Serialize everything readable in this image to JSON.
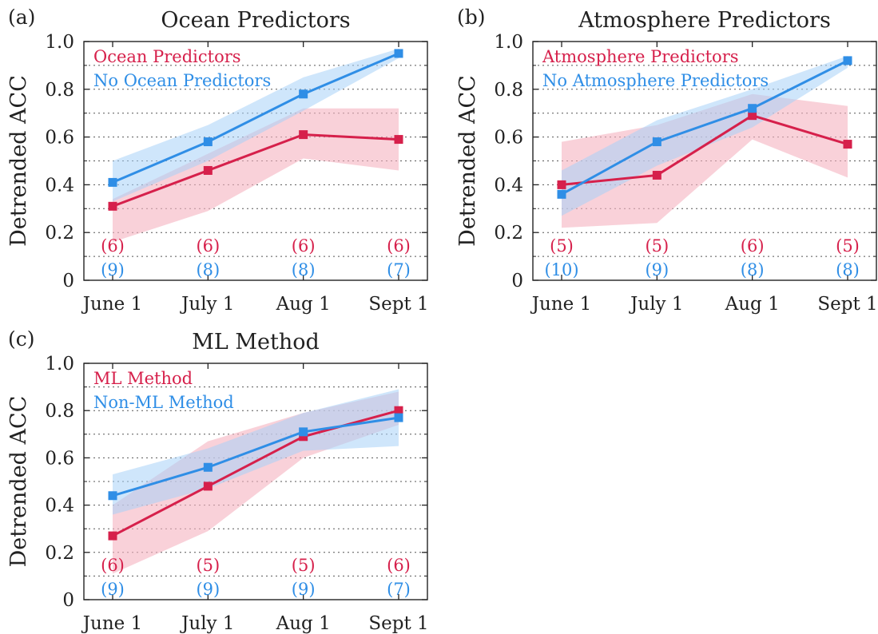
{
  "colors": {
    "red": "#d6204b",
    "blue": "#2f8ee6",
    "red_fill": "#f5b3bf",
    "blue_fill": "#a8d1f7"
  },
  "chart_data": [
    {
      "type": "line",
      "panel_label": "(a)",
      "title": "Ocean Predictors",
      "xlabel": "",
      "ylabel": "Detrended ACC",
      "categories": [
        "June 1",
        "July 1",
        "Aug 1",
        "Sept 1"
      ],
      "ylim": [
        0,
        1.0
      ],
      "yticks": [
        "0",
        "0.2",
        "0.4",
        "0.6",
        "0.8",
        "1.0"
      ],
      "grid": "dotted horizontal",
      "legend": "top-left",
      "series": [
        {
          "name": "Ocean Predictors",
          "color": "red",
          "values": [
            0.31,
            0.46,
            0.61,
            0.59
          ],
          "lower": [
            0.16,
            0.29,
            0.51,
            0.46
          ],
          "upper": [
            0.34,
            0.53,
            0.72,
            0.72
          ],
          "counts": [
            "(6)",
            "(6)",
            "(6)",
            "(6)"
          ]
        },
        {
          "name": "No Ocean Predictors",
          "color": "blue",
          "values": [
            0.41,
            0.58,
            0.78,
            0.95
          ],
          "lower": [
            0.33,
            0.5,
            0.71,
            0.93
          ],
          "upper": [
            0.5,
            0.65,
            0.85,
            0.97
          ],
          "counts": [
            "(9)",
            "(8)",
            "(8)",
            "(7)"
          ]
        }
      ]
    },
    {
      "type": "line",
      "panel_label": "(b)",
      "title": "Atmosphere Predictors",
      "xlabel": "",
      "ylabel": "Detrended ACC",
      "categories": [
        "June 1",
        "July 1",
        "Aug 1",
        "Sept 1"
      ],
      "ylim": [
        0,
        1.0
      ],
      "yticks": [
        "0",
        "0.2",
        "0.4",
        "0.6",
        "0.8",
        "1.0"
      ],
      "grid": "dotted horizontal",
      "legend": "top-left",
      "series": [
        {
          "name": "Atmosphere Predictors",
          "color": "red",
          "values": [
            0.4,
            0.44,
            0.69,
            0.57
          ],
          "lower": [
            0.22,
            0.24,
            0.59,
            0.43
          ],
          "upper": [
            0.58,
            0.65,
            0.78,
            0.73
          ],
          "counts": [
            "(5)",
            "(5)",
            "(6)",
            "(5)"
          ]
        },
        {
          "name": "No Atmosphere Predictors",
          "color": "blue",
          "values": [
            0.36,
            0.58,
            0.72,
            0.92
          ],
          "lower": [
            0.27,
            0.48,
            0.64,
            0.89
          ],
          "upper": [
            0.46,
            0.67,
            0.8,
            0.94
          ],
          "counts": [
            "(10)",
            "(9)",
            "(8)",
            "(8)"
          ]
        }
      ]
    },
    {
      "type": "line",
      "panel_label": "(c)",
      "title": "ML Method",
      "xlabel": "",
      "ylabel": "Detrended ACC",
      "categories": [
        "June 1",
        "July 1",
        "Aug 1",
        "Sept 1"
      ],
      "ylim": [
        0,
        1.0
      ],
      "yticks": [
        "0",
        "0.2",
        "0.4",
        "0.6",
        "0.8",
        "1.0"
      ],
      "grid": "dotted horizontal",
      "legend": "top-left",
      "series": [
        {
          "name": "ML Method",
          "color": "red",
          "values": [
            0.27,
            0.48,
            0.69,
            0.8
          ],
          "lower": [
            0.11,
            0.29,
            0.6,
            0.74
          ],
          "upper": [
            0.4,
            0.67,
            0.79,
            0.88
          ],
          "counts": [
            "(6)",
            "(5)",
            "(5)",
            "(6)"
          ]
        },
        {
          "name": "Non-ML Method",
          "color": "blue",
          "values": [
            0.44,
            0.56,
            0.71,
            0.77
          ],
          "lower": [
            0.36,
            0.47,
            0.63,
            0.65
          ],
          "upper": [
            0.53,
            0.64,
            0.79,
            0.89
          ],
          "counts": [
            "(9)",
            "(9)",
            "(9)",
            "(7)"
          ]
        }
      ]
    }
  ]
}
